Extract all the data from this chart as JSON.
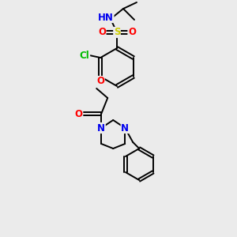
{
  "background_color": "#ebebeb",
  "bond_color": "#000000",
  "atom_colors": {
    "N": "#0000ee",
    "O": "#ff0000",
    "S": "#cccc00",
    "Cl": "#00bb00",
    "H": "#4488aa",
    "C": "#000000"
  },
  "fs": 8.5
}
